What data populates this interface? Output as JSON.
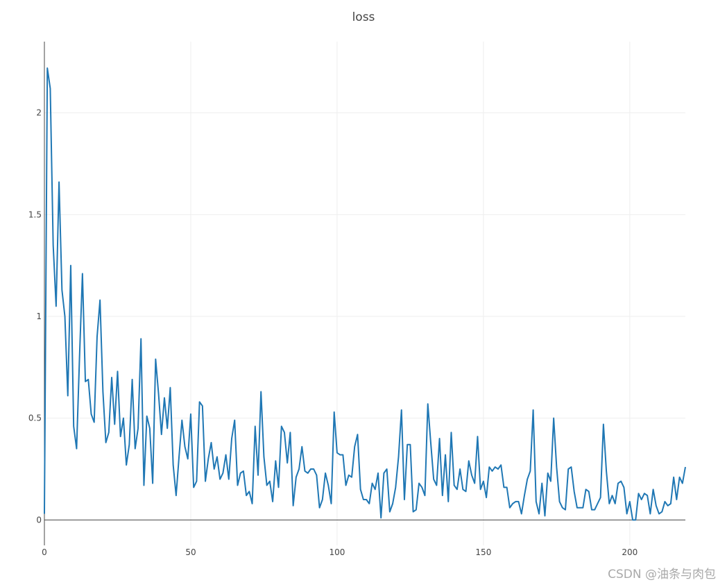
{
  "chart_data": {
    "type": "line",
    "title": "loss",
    "xlabel": "",
    "ylabel": "",
    "xlim": [
      0,
      219
    ],
    "ylim": [
      -0.125,
      2.35
    ],
    "x_ticks": [
      0,
      50,
      100,
      150,
      200
    ],
    "y_ticks": [
      0,
      0.5,
      1,
      1.5,
      2
    ],
    "x_tick_labels": [
      "0",
      "50",
      "100",
      "150",
      "200"
    ],
    "y_tick_labels": [
      "0",
      "0.5",
      "1",
      "1.5",
      "2"
    ],
    "grid": true,
    "legend": "none",
    "color": "#1f77b4",
    "series": [
      {
        "values": [
          0.03,
          2.22,
          2.12,
          1.35,
          1.05,
          1.66,
          1.13,
          1.0,
          0.61,
          1.25,
          0.46,
          0.35,
          0.8,
          1.21,
          0.68,
          0.69,
          0.52,
          0.48,
          0.9,
          1.08,
          0.63,
          0.38,
          0.43,
          0.7,
          0.47,
          0.73,
          0.41,
          0.5,
          0.27,
          0.37,
          0.69,
          0.35,
          0.45,
          0.89,
          0.17,
          0.51,
          0.45,
          0.18,
          0.79,
          0.62,
          0.42,
          0.6,
          0.45,
          0.65,
          0.27,
          0.12,
          0.31,
          0.49,
          0.36,
          0.3,
          0.52,
          0.16,
          0.19,
          0.58,
          0.56,
          0.19,
          0.3,
          0.38,
          0.25,
          0.31,
          0.2,
          0.23,
          0.32,
          0.2,
          0.4,
          0.49,
          0.17,
          0.23,
          0.24,
          0.12,
          0.14,
          0.08,
          0.46,
          0.22,
          0.63,
          0.31,
          0.17,
          0.19,
          0.09,
          0.29,
          0.16,
          0.46,
          0.43,
          0.28,
          0.43,
          0.07,
          0.21,
          0.25,
          0.36,
          0.24,
          0.23,
          0.25,
          0.25,
          0.22,
          0.06,
          0.1,
          0.23,
          0.17,
          0.08,
          0.53,
          0.33,
          0.32,
          0.32,
          0.17,
          0.22,
          0.21,
          0.36,
          0.42,
          0.15,
          0.1,
          0.1,
          0.08,
          0.18,
          0.15,
          0.23,
          0.01,
          0.23,
          0.25,
          0.04,
          0.08,
          0.16,
          0.31,
          0.54,
          0.1,
          0.37,
          0.37,
          0.04,
          0.05,
          0.18,
          0.16,
          0.12,
          0.57,
          0.38,
          0.2,
          0.17,
          0.4,
          0.12,
          0.32,
          0.09,
          0.43,
          0.17,
          0.15,
          0.25,
          0.15,
          0.14,
          0.29,
          0.22,
          0.18,
          0.41,
          0.15,
          0.19,
          0.11,
          0.26,
          0.24,
          0.26,
          0.25,
          0.27,
          0.16,
          0.16,
          0.06,
          0.08,
          0.09,
          0.09,
          0.03,
          0.12,
          0.2,
          0.24,
          0.54,
          0.09,
          0.03,
          0.18,
          0.02,
          0.23,
          0.19,
          0.5,
          0.26,
          0.09,
          0.06,
          0.05,
          0.25,
          0.26,
          0.14,
          0.06,
          0.06,
          0.06,
          0.15,
          0.14,
          0.05,
          0.05,
          0.08,
          0.11,
          0.47,
          0.24,
          0.08,
          0.12,
          0.08,
          0.18,
          0.19,
          0.16,
          0.03,
          0.09,
          0.0,
          0.0,
          0.13,
          0.1,
          0.13,
          0.12,
          0.03,
          0.15,
          0.07,
          0.03,
          0.04,
          0.09,
          0.07,
          0.08,
          0.21,
          0.1,
          0.21,
          0.18,
          0.26
        ]
      }
    ]
  },
  "watermark": "CSDN @油条与肉包"
}
